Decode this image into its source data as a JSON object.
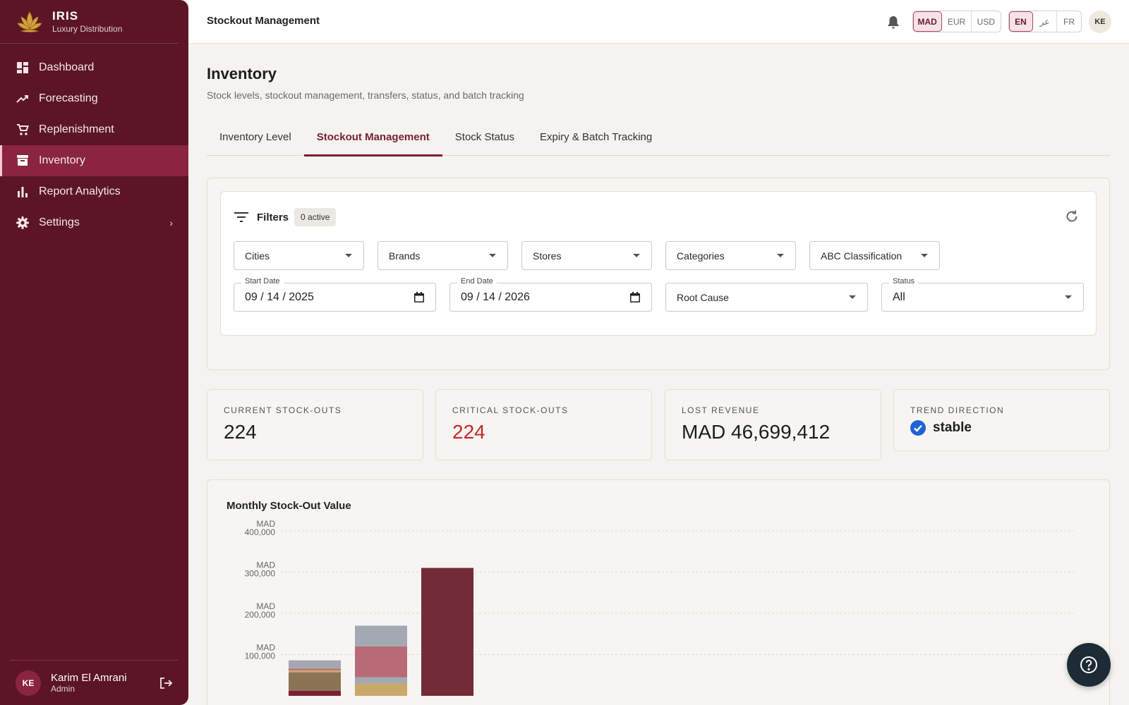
{
  "brand": {
    "name": "IRIS",
    "subtitle": "Luxury Distribution"
  },
  "nav": [
    {
      "label": "Dashboard",
      "icon": "dashboard-icon"
    },
    {
      "label": "Forecasting",
      "icon": "trending-up-icon"
    },
    {
      "label": "Replenishment",
      "icon": "cart-icon"
    },
    {
      "label": "Inventory",
      "icon": "archive-icon",
      "active": true
    },
    {
      "label": "Report Analytics",
      "icon": "bar-chart-icon"
    },
    {
      "label": "Settings",
      "icon": "gear-icon"
    }
  ],
  "user": {
    "initials": "KE",
    "name": "Karim El Amrani",
    "role": "Admin"
  },
  "topbar": {
    "title": "Stockout Management",
    "currencies": [
      "MAD",
      "EUR",
      "USD"
    ],
    "active_currency": "MAD",
    "languages": [
      "EN",
      "عر",
      "FR"
    ],
    "active_language": "EN",
    "avatar_initials": "KE"
  },
  "page": {
    "title": "Inventory",
    "subtitle": "Stock levels, stockout management, transfers, status, and batch tracking",
    "tabs": [
      "Inventory Level",
      "Stockout Management",
      "Stock Status",
      "Expiry & Batch Tracking"
    ],
    "active_tab": 1
  },
  "filters": {
    "title": "Filters",
    "active_badge": "0 active",
    "selects": [
      "Cities",
      "Brands",
      "Stores",
      "Categories",
      "ABC Classification"
    ],
    "start_date": {
      "label": "Start Date",
      "value": "09 / 14 / 2025"
    },
    "end_date": {
      "label": "End Date",
      "value": "09 / 14 / 2026"
    },
    "root_cause": "Root Cause",
    "status": {
      "label": "Status",
      "value": "All"
    }
  },
  "kpis": {
    "current": {
      "label": "CURRENT STOCK-OUTS",
      "value": "224"
    },
    "critical": {
      "label": "CRITICAL STOCK-OUTS",
      "value": "224"
    },
    "lost": {
      "label": "LOST REVENUE",
      "value": "MAD 46,699,412"
    },
    "trend": {
      "label": "TREND DIRECTION",
      "value": "stable"
    }
  },
  "colors": {
    "sidebar": "#5c1527",
    "accent": "#7a1f35",
    "critical": "#c62828",
    "trend_check": "#1e63d6"
  },
  "chart_data": {
    "type": "bar",
    "stacked": true,
    "title": "Monthly Stock-Out Value",
    "y_ticks": [
      {
        "value": 400000,
        "line1": "MAD",
        "line2": "400,000"
      },
      {
        "value": 300000,
        "line1": "MAD",
        "line2": "300,000"
      },
      {
        "value": 200000,
        "line1": "MAD",
        "line2": "200,000"
      },
      {
        "value": 100000,
        "line1": "MAD",
        "line2": "100,000"
      }
    ],
    "ylim": [
      0,
      410000
    ],
    "grid": true,
    "stacks": [
      {
        "segments": [
          {
            "value": 12000,
            "color": "#7a2034"
          },
          {
            "value": 45000,
            "color": "#8c7355"
          },
          {
            "value": 5000,
            "color": "#c9a86a"
          },
          {
            "value": 4000,
            "color": "#b86a77"
          },
          {
            "value": 20000,
            "color": "#a3a8b3"
          }
        ]
      },
      {
        "segments": [
          {
            "value": 30000,
            "color": "#c9a86a"
          },
          {
            "value": 15000,
            "color": "#a3a8b3"
          },
          {
            "value": 75000,
            "color": "#b86a77"
          },
          {
            "value": 50000,
            "color": "#a3a8b3"
          }
        ]
      },
      {
        "segments": [
          {
            "value": 310000,
            "color": "#742b38"
          }
        ]
      }
    ]
  }
}
